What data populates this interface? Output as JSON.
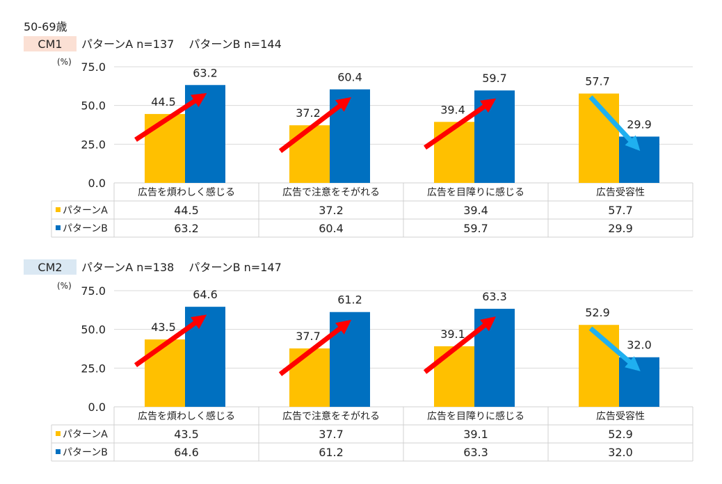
{
  "header": {
    "age_group": "50-69歳"
  },
  "colors": {
    "pattern_a": "#FFC000",
    "pattern_b": "#0070C0",
    "arrow_up": "#FF0000",
    "arrow_down": "#1FB0F0",
    "cm1_tag_bg": "#FBE0D4",
    "cm2_tag_bg": "#DAE8F3",
    "gridline": "#D9D9D9",
    "table_border": "#D0D0D0"
  },
  "chart_data": [
    {
      "type": "bar",
      "tag": "CM1",
      "subtitle": "パターンA  n=137　 パターンB  n=144",
      "unit_label": "(%)",
      "ylim": [
        0,
        75
      ],
      "yticks": [
        "0.0",
        "25.0",
        "50.0",
        "75.0"
      ],
      "grid": true,
      "categories": [
        "広告を煩わしく感じる",
        "広告で注意をそがれる",
        "広告を目障りに感じる",
        "広告受容性"
      ],
      "series": [
        {
          "name": "パターンA",
          "values": [
            44.5,
            37.2,
            39.4,
            57.7
          ],
          "labels": [
            "44.5",
            "37.2",
            "39.4",
            "57.7"
          ]
        },
        {
          "name": "パターンB",
          "values": [
            63.2,
            60.4,
            59.7,
            29.9
          ],
          "labels": [
            "63.2",
            "60.4",
            "59.7",
            "29.9"
          ]
        }
      ],
      "arrows": [
        "up",
        "up",
        "up",
        "down"
      ]
    },
    {
      "type": "bar",
      "tag": "CM2",
      "subtitle": "パターンA  n=138　 パターンB  n=147",
      "unit_label": "(%)",
      "ylim": [
        0,
        75
      ],
      "yticks": [
        "0.0",
        "25.0",
        "50.0",
        "75.0"
      ],
      "grid": true,
      "categories": [
        "広告を煩わしく感じる",
        "広告で注意をそがれる",
        "広告を目障りに感じる",
        "広告受容性"
      ],
      "series": [
        {
          "name": "パターンA",
          "values": [
            43.5,
            37.7,
            39.1,
            52.9
          ],
          "labels": [
            "43.5",
            "37.7",
            "39.1",
            "52.9"
          ]
        },
        {
          "name": "パターンB",
          "values": [
            64.6,
            61.2,
            63.3,
            32.0
          ],
          "labels": [
            "64.6",
            "61.2",
            "63.3",
            "32.0"
          ]
        }
      ],
      "arrows": [
        "up",
        "up",
        "up",
        "down"
      ]
    }
  ]
}
